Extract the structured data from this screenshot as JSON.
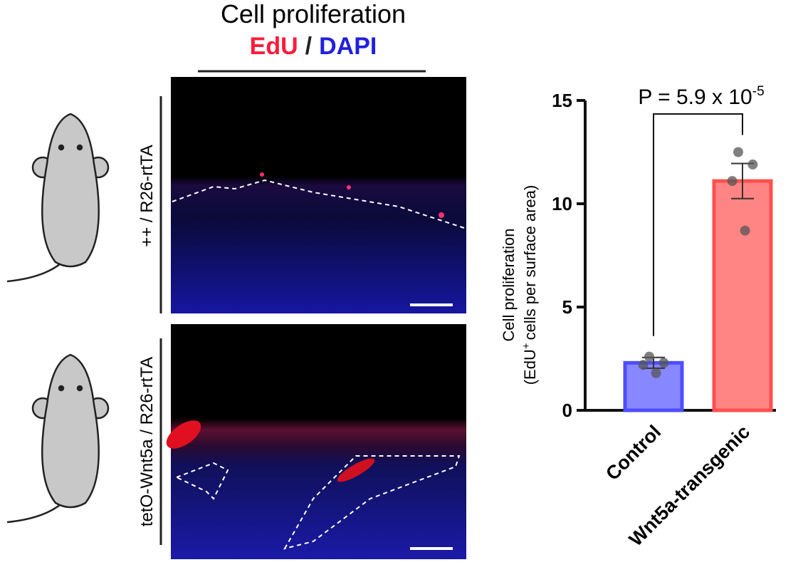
{
  "figure_title": "Cell proliferation",
  "stain": {
    "edu": "EdU",
    "sep": "/",
    "dapi": "DAPI"
  },
  "panels": [
    {
      "label": "++ / R26-rtTA"
    },
    {
      "label": "tetO-Wnt5a / R26-rtTA"
    }
  ],
  "chart_data": {
    "type": "bar",
    "ylabel": {
      "line1": "Cell proliferation",
      "line2_start": "(EdU",
      "line2_sup": "+",
      "line2_end": "cells per surface area)"
    },
    "annotation": {
      "text": "P = 5.9 x 10",
      "sup": "-5"
    },
    "categories": [
      "Control",
      "Wnt5a-transgenic"
    ],
    "values": [
      2.3,
      11.1
    ],
    "errors": [
      0.26,
      0.85
    ],
    "points": [
      [
        2.6,
        2.3,
        2.2,
        1.8
      ],
      [
        12.5,
        11.9,
        11.1,
        8.7
      ]
    ],
    "colors": [
      "#7a7aff",
      "#ff7878"
    ],
    "edge_colors": [
      "#4d4dff",
      "#ff5050"
    ],
    "point_color": "#555555",
    "ylim": [
      0,
      15
    ],
    "yticks": [
      0,
      5,
      10,
      15
    ]
  }
}
